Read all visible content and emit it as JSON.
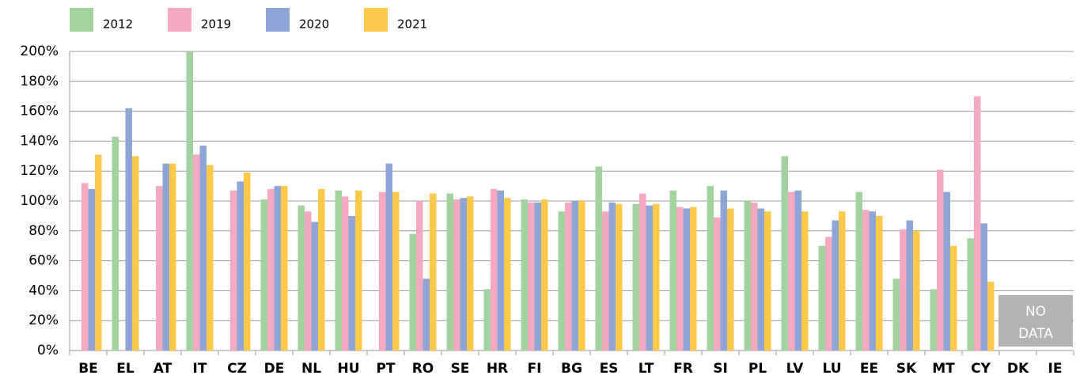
{
  "chart_data": {
    "type": "bar",
    "categories": [
      "BE",
      "EL",
      "AT",
      "IT",
      "CZ",
      "DE",
      "NL",
      "HU",
      "PT",
      "RO",
      "SE",
      "HR",
      "FI",
      "BG",
      "ES",
      "LT",
      "FR",
      "SI",
      "PL",
      "LV",
      "LU",
      "EE",
      "SK",
      "MT",
      "CY",
      "DK",
      "IE"
    ],
    "series": [
      {
        "name": "2012",
        "color": "#a3d39c",
        "values": [
          null,
          143,
          null,
          200,
          null,
          101,
          97,
          107,
          null,
          78,
          105,
          41,
          101,
          93,
          123,
          98,
          107,
          110,
          100,
          130,
          70,
          106,
          48,
          41,
          75,
          null,
          null
        ]
      },
      {
        "name": "2019",
        "color": "#f4a9c0",
        "values": [
          112,
          null,
          110,
          131,
          107,
          108,
          93,
          103,
          106,
          100,
          101,
          108,
          99,
          99,
          93,
          105,
          96,
          89,
          99,
          106,
          76,
          94,
          81,
          121,
          170,
          null,
          null
        ]
      },
      {
        "name": "2020",
        "color": "#8fa5d6",
        "values": [
          108,
          162,
          125,
          137,
          113,
          110,
          86,
          90,
          125,
          48,
          102,
          107,
          99,
          100,
          99,
          97,
          95,
          107,
          95,
          107,
          87,
          93,
          87,
          106,
          85,
          null,
          null
        ]
      },
      {
        "name": "2021",
        "color": "#fdc94b",
        "values": [
          131,
          130,
          125,
          124,
          119,
          110,
          108,
          107,
          106,
          105,
          103,
          102,
          101,
          100,
          98,
          98,
          96,
          95,
          93,
          93,
          93,
          90,
          80,
          70,
          46,
          null,
          null
        ]
      }
    ],
    "ylim": [
      0,
      200
    ],
    "yticks": [
      {
        "value": 0,
        "label": "0%"
      },
      {
        "value": 20,
        "label": "20%"
      },
      {
        "value": 40,
        "label": "40%"
      },
      {
        "value": 60,
        "label": "60%"
      },
      {
        "value": 80,
        "label": "80%"
      },
      {
        "value": 100,
        "label": "100%"
      },
      {
        "value": 120,
        "label": "120%"
      },
      {
        "value": 140,
        "label": "140%"
      },
      {
        "value": 160,
        "label": "160%"
      },
      {
        "value": 180,
        "label": "180%"
      },
      {
        "value": 200,
        "label": "200%"
      }
    ],
    "grid": true,
    "annotation": [
      "NO",
      "DATA"
    ]
  }
}
